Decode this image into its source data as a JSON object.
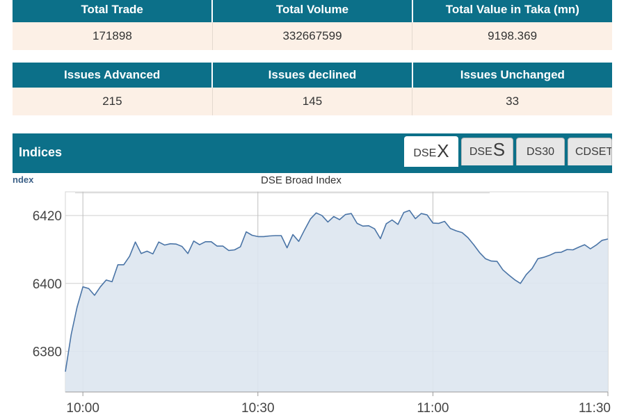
{
  "trade_stats": {
    "headers": [
      "Total Trade",
      "Total Volume",
      "Total Value in Taka (mn)"
    ],
    "values": [
      "171898",
      "332667599",
      "9198.369"
    ]
  },
  "issue_stats": {
    "headers": [
      "Issues Advanced",
      "Issues declined",
      "Issues Unchanged"
    ],
    "values": [
      "215",
      "145",
      "33"
    ]
  },
  "indices": {
    "title": "Indices",
    "tabs": [
      {
        "prefix": "DSE",
        "big": "X",
        "active": true
      },
      {
        "prefix": "DSE",
        "big": "S",
        "active": false
      },
      {
        "prefix": "DS30",
        "big": "",
        "active": false
      },
      {
        "prefix": "CDSET",
        "big": "",
        "active": false
      }
    ],
    "partial_label": "ndex"
  },
  "colors": {
    "header_bg": "#0c7089",
    "value_row_bg": "#fcf0e6",
    "series_line": "#4a74a6",
    "series_fill": "#dde6f0"
  },
  "chart_data": {
    "type": "area",
    "title": "DSE Broad Index",
    "x_ticks": [
      "10:00",
      "10:30",
      "11:00",
      "11:30"
    ],
    "y_ticks": [
      6380,
      6400,
      6420
    ],
    "ylim": [
      6368,
      6427
    ],
    "xlim_minutes": [
      -3,
      90
    ],
    "grid": true,
    "series": [
      {
        "x": [
          -3,
          -2,
          -1,
          0,
          1,
          2,
          3,
          4,
          5,
          6,
          7,
          8,
          9,
          10,
          11,
          12,
          13,
          14,
          15,
          16,
          17,
          18,
          19,
          20,
          21,
          22,
          23,
          24,
          25,
          26,
          27,
          28,
          29,
          30,
          31,
          32,
          33,
          34,
          35,
          36,
          37,
          38,
          39,
          40,
          41,
          42,
          43,
          44,
          45,
          46,
          47,
          48,
          49,
          50,
          51,
          52,
          53,
          54,
          55,
          56,
          57,
          58,
          59,
          60,
          61,
          62,
          63,
          64,
          65,
          66,
          67,
          68,
          69,
          70,
          71,
          72,
          73,
          74,
          75,
          76,
          77,
          78,
          79,
          80,
          81,
          82,
          83,
          84,
          85,
          86,
          87,
          88,
          89,
          90
        ],
        "y": [
          6374,
          6385,
          6393,
          6399,
          6398.5,
          6396.5,
          6399,
          6401,
          6400.5,
          6405.5,
          6405.5,
          6408,
          6412.2,
          6408.8,
          6409.5,
          6408.7,
          6412.2,
          6411.3,
          6411.7,
          6411.6,
          6410.9,
          6408.8,
          6412.5,
          6411.4,
          6412.3,
          6412.3,
          6411,
          6411,
          6409.7,
          6409.9,
          6410.8,
          6415.2,
          6414.2,
          6413.8,
          6413.8,
          6414,
          6414.1,
          6414.1,
          6410.5,
          6414.4,
          6412.4,
          6415.8,
          6419,
          6420.8,
          6420,
          6418.1,
          6419.7,
          6418.8,
          6420.3,
          6420.6,
          6417.7,
          6416.9,
          6417,
          6416.1,
          6413.2,
          6417.6,
          6418.7,
          6417.4,
          6420.9,
          6421.5,
          6419.1,
          6420.6,
          6420.2,
          6417.8,
          6417.7,
          6418.3,
          6416.2,
          6415.5,
          6415,
          6413.5,
          6411.4,
          6409.1,
          6407.3,
          6406.6,
          6406.5,
          6404,
          6402.5,
          6401.1,
          6400,
          6402.6,
          6404.4,
          6407.3,
          6407.7,
          6408.3,
          6409.1,
          6409.2,
          6410,
          6409.9,
          6410.7,
          6411.4,
          6410.2,
          6411.3,
          6412.7,
          6413.1
        ]
      }
    ]
  }
}
